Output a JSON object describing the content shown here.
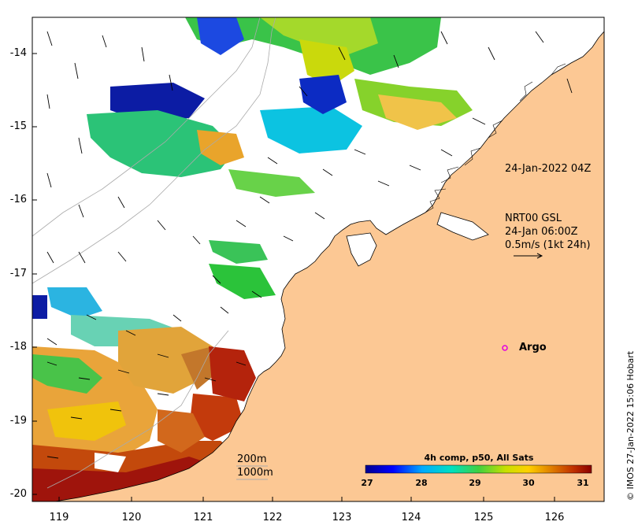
{
  "map": {
    "x_axis": {
      "ticks": [
        "119",
        "120",
        "121",
        "122",
        "123",
        "124",
        "125",
        "126"
      ]
    },
    "y_axis": {
      "ticks": [
        "-14",
        "-15",
        "-16",
        "-17",
        "-18",
        "-19",
        "-20"
      ]
    },
    "lon_range": [
      118.6,
      126.75
    ],
    "lat_range": [
      -20.1,
      -13.5
    ]
  },
  "annotations": {
    "timestamp": "24-Jan-2022 04Z",
    "current_title": "NRT00 GSL",
    "current_time": "24-Jan 06:00Z",
    "current_scale": "0.5m/s (1kt 24h)",
    "argo_label": "Argo",
    "isobath_200": "200m",
    "isobath_1000": "1000m"
  },
  "colorbar": {
    "title": "4h comp, p50, All Sats",
    "ticks": [
      "27",
      "28",
      "29",
      "30",
      "31"
    ],
    "range": [
      27,
      31
    ]
  },
  "credit": "© IMOS 27-Jan-2022 15:06 Hobart",
  "colors": {
    "land": "#fcc894",
    "argo": "#e000e0"
  }
}
